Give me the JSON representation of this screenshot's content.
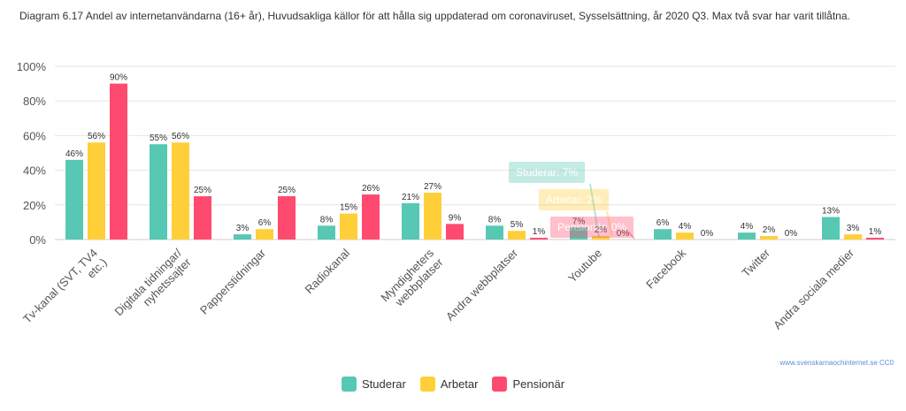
{
  "title": "Diagram 6.17 Andel av internetanvändarna (16+ år), Huvudsakliga källor för att hålla sig uppdaterad om coronaviruset, Sysselsättning, år 2020 Q3. Max två svar har varit tillåtna.",
  "credit": "www.svenskarnaochinternet.se CC0",
  "tooltips": [
    {
      "label": "Studerar: 7%",
      "color": "#57c8b3"
    },
    {
      "label": "Arbetar: 2%",
      "color": "#ffcf3a"
    },
    {
      "label": "Pensionär: 0%",
      "color": "#ff4a6f"
    }
  ],
  "chart_data": {
    "type": "bar",
    "categories": [
      "Tv-kanal (SVT, TV4 etc.)",
      "Digitala tidningar/ nyhetssajter",
      "Papperstidningar",
      "Radiokanal",
      "Myndigheters webbplatser",
      "Andra webbplatser",
      "Youtube",
      "Facebook",
      "Twitter",
      "Andra sociala medier"
    ],
    "category_lines": [
      [
        "Tv-kanal (SVT, TV4",
        "etc.)"
      ],
      [
        "Digitala tidningar/",
        "nyhetssajter"
      ],
      [
        "Papperstidningar"
      ],
      [
        "Radiokanal"
      ],
      [
        "Myndigheters",
        "webbplatser"
      ],
      [
        "Andra webbplatser"
      ],
      [
        "Youtube"
      ],
      [
        "Facebook"
      ],
      [
        "Twitter"
      ],
      [
        "Andra sociala medier"
      ]
    ],
    "series": [
      {
        "name": "Studerar",
        "color": "#57c8b3",
        "values": [
          46,
          55,
          3,
          8,
          21,
          8,
          7,
          6,
          4,
          13
        ]
      },
      {
        "name": "Arbetar",
        "color": "#ffcf3a",
        "values": [
          56,
          56,
          6,
          15,
          27,
          5,
          2,
          4,
          2,
          3
        ]
      },
      {
        "name": "Pensionär",
        "color": "#ff4a6f",
        "values": [
          90,
          25,
          25,
          26,
          9,
          1,
          0,
          0,
          0,
          1
        ]
      }
    ],
    "value_suffix": "%",
    "yticks": [
      "0%",
      "20%",
      "40%",
      "60%",
      "80%",
      "100%"
    ],
    "ylim": [
      0,
      100
    ],
    "grid": true,
    "legend": "bottom-center"
  }
}
